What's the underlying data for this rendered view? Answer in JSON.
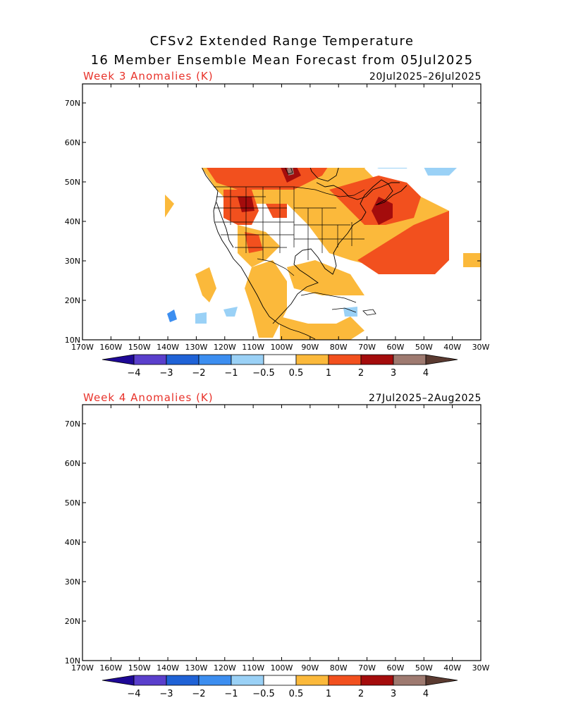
{
  "title_line1": "CFSv2 Extended Range Temperature",
  "title_line2": "16 Member Ensemble Mean Forecast from 05Jul2025",
  "panels": [
    {
      "label": "Week 3 Anomalies (K)",
      "dates": "20Jul2025–26Jul2025"
    },
    {
      "label": "Week 4 Anomalies (K)",
      "dates": "27Jul2025–2Aug2025"
    }
  ],
  "lon_ticks": [
    "170W",
    "160W",
    "150W",
    "140W",
    "130W",
    "120W",
    "110W",
    "100W",
    "90W",
    "80W",
    "70W",
    "60W",
    "50W",
    "40W",
    "30W"
  ],
  "lat_ticks": [
    "70N",
    "60N",
    "50N",
    "40N",
    "30N",
    "20N",
    "10N"
  ],
  "colorbar": {
    "labels": [
      "−4",
      "−3",
      "−2",
      "−1",
      "−0.5",
      "0.5",
      "1",
      "2",
      "3",
      "4"
    ],
    "colors": [
      "#1e0896",
      "#5a3fcc",
      "#1f62d6",
      "#3c8ef0",
      "#9ad1f6",
      "#ffffff",
      "#fbb93b",
      "#f2501e",
      "#a40c0c",
      "#9e7a70",
      "#5a3a30"
    ]
  }
}
